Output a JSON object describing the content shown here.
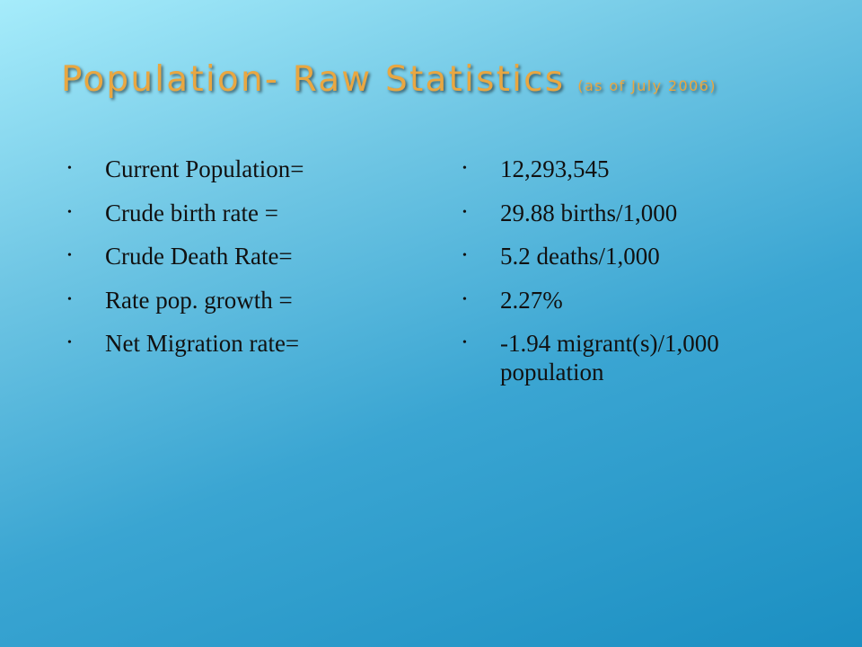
{
  "header": {
    "title": "Population- Raw Statistics",
    "subtitle": "(as of July 2006)"
  },
  "labels": [
    "Current Population=",
    "Crude birth rate =",
    "Crude Death Rate=",
    "Rate  pop. growth =",
    "Net Migration rate="
  ],
  "values": [
    "12,293,545",
    "29.88 births/1,000",
    "5.2 deaths/1,000",
    "2.27%",
    "-1.94 migrant(s)/1,000 population"
  ]
}
